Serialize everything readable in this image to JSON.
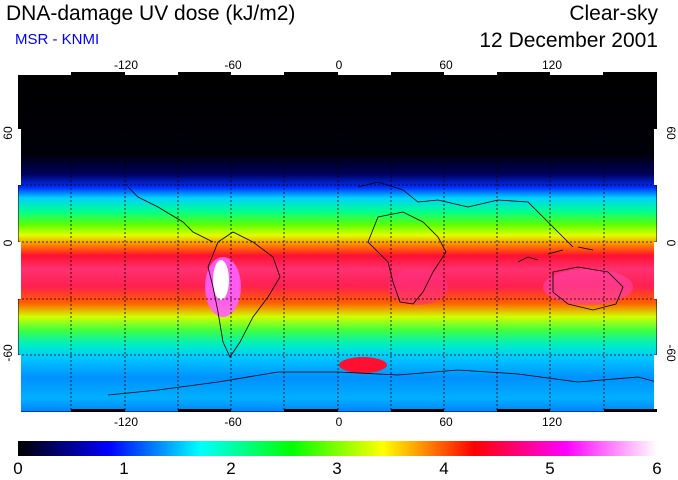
{
  "header": {
    "title": "DNA-damage UV dose (kJ/m2)",
    "subtitle": "MSR - KNMI",
    "sky_condition": "Clear-sky",
    "date": "12 December 2001"
  },
  "map": {
    "longitude_ticks": [
      "-120",
      "-60",
      "0",
      "60",
      "120"
    ],
    "latitude_ticks": [
      "60",
      "0",
      "-60"
    ],
    "grid": true,
    "projection": "equirectangular",
    "longitude_range": [
      -180,
      180
    ],
    "latitude_range": [
      -90,
      90
    ]
  },
  "colorbar": {
    "range": [
      0,
      6
    ],
    "labels": [
      "0",
      "1",
      "2",
      "3",
      "4",
      "5",
      "6"
    ],
    "colors": [
      "#000000",
      "#000080",
      "#0000ff",
      "#0080ff",
      "#00ffff",
      "#00ff80",
      "#00ff00",
      "#80ff00",
      "#ffff00",
      "#ff8000",
      "#ff0000",
      "#ff0080",
      "#ff00ff",
      "#ff80ff",
      "#ffffff"
    ]
  }
}
